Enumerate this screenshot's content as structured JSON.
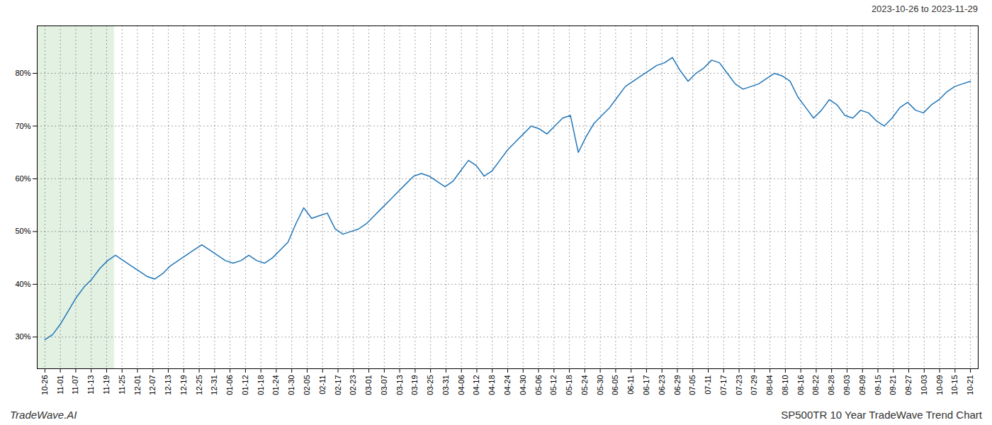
{
  "chart_data": {
    "type": "line",
    "title": "SP500TR 10 Year TradeWave Trend Chart",
    "subtitle": "2023-10-26 to 2023-11-29",
    "annotations": [
      "TradeWave.AI"
    ],
    "color": "#2176b8",
    "grid": true,
    "xlim": [
      -0.5,
      60.5
    ],
    "xticks": [
      {
        "value": 0,
        "label": "10-26"
      },
      {
        "value": 1,
        "label": "11-01"
      },
      {
        "value": 2,
        "label": "11-07"
      },
      {
        "value": 3,
        "label": "11-13"
      },
      {
        "value": 4,
        "label": "11-19"
      },
      {
        "value": 5,
        "label": "11-25"
      },
      {
        "value": 6,
        "label": "12-01"
      },
      {
        "value": 7,
        "label": "12-07"
      },
      {
        "value": 8,
        "label": "12-13"
      },
      {
        "value": 9,
        "label": "12-19"
      },
      {
        "value": 10,
        "label": "12-25"
      },
      {
        "value": 11,
        "label": "12-31"
      },
      {
        "value": 12,
        "label": "01-06"
      },
      {
        "value": 13,
        "label": "01-12"
      },
      {
        "value": 14,
        "label": "01-18"
      },
      {
        "value": 15,
        "label": "01-24"
      },
      {
        "value": 16,
        "label": "01-30"
      },
      {
        "value": 17,
        "label": "02-05"
      },
      {
        "value": 18,
        "label": "02-11"
      },
      {
        "value": 19,
        "label": "02-17"
      },
      {
        "value": 20,
        "label": "02-23"
      },
      {
        "value": 21,
        "label": "03-01"
      },
      {
        "value": 22,
        "label": "03-07"
      },
      {
        "value": 23,
        "label": "03-13"
      },
      {
        "value": 24,
        "label": "03-19"
      },
      {
        "value": 25,
        "label": "03-25"
      },
      {
        "value": 26,
        "label": "03-31"
      },
      {
        "value": 27,
        "label": "04-06"
      },
      {
        "value": 28,
        "label": "04-12"
      },
      {
        "value": 29,
        "label": "04-18"
      },
      {
        "value": 30,
        "label": "04-24"
      },
      {
        "value": 31,
        "label": "04-30"
      },
      {
        "value": 32,
        "label": "05-06"
      },
      {
        "value": 33,
        "label": "05-12"
      },
      {
        "value": 34,
        "label": "05-18"
      },
      {
        "value": 35,
        "label": "05-24"
      },
      {
        "value": 36,
        "label": "05-30"
      },
      {
        "value": 37,
        "label": "06-05"
      },
      {
        "value": 38,
        "label": "06-11"
      },
      {
        "value": 39,
        "label": "06-17"
      },
      {
        "value": 40,
        "label": "06-23"
      },
      {
        "value": 41,
        "label": "06-29"
      },
      {
        "value": 42,
        "label": "07-05"
      },
      {
        "value": 43,
        "label": "07-11"
      },
      {
        "value": 44,
        "label": "07-17"
      },
      {
        "value": 45,
        "label": "07-23"
      },
      {
        "value": 46,
        "label": "07-29"
      },
      {
        "value": 47,
        "label": "08-04"
      },
      {
        "value": 48,
        "label": "08-10"
      },
      {
        "value": 49,
        "label": "08-16"
      },
      {
        "value": 50,
        "label": "08-22"
      },
      {
        "value": 51,
        "label": "08-28"
      },
      {
        "value": 52,
        "label": "09-03"
      },
      {
        "value": 53,
        "label": "09-09"
      },
      {
        "value": 54,
        "label": "09-15"
      },
      {
        "value": 55,
        "label": "09-21"
      },
      {
        "value": 56,
        "label": "09-27"
      },
      {
        "value": 57,
        "label": "10-03"
      },
      {
        "value": 58,
        "label": "10-09"
      },
      {
        "value": 59,
        "label": "10-15"
      },
      {
        "value": 60,
        "label": "10-21"
      }
    ],
    "ylim": [
      24,
      89
    ],
    "yticks": [
      {
        "value": 30,
        "label": "30%"
      },
      {
        "value": 40,
        "label": "40%"
      },
      {
        "value": 50,
        "label": "50%"
      },
      {
        "value": 60,
        "label": "60%"
      },
      {
        "value": 70,
        "label": "70%"
      },
      {
        "value": 80,
        "label": "80%"
      }
    ],
    "shaded": [
      {
        "x": [
          -0.5,
          4.5
        ],
        "color": "#d4ead4"
      }
    ],
    "x": [
      0,
      0.508475,
      1.016949,
      1.525424,
      2.033898,
      2.542373,
      3.050847,
      3.559322,
      4.067797,
      4.576271,
      5.084746,
      5.59322,
      6.101695,
      6.610169,
      7.118644,
      7.627119,
      8.135593,
      8.644068,
      9.152542,
      9.661017,
      10.169492,
      10.677966,
      11.186441,
      11.694915,
      12.20339,
      12.711864,
      13.220339,
      13.728814,
      14.237288,
      14.745763,
      15.254237,
      15.762712,
      16.271186,
      16.779661,
      17.288136,
      17.79661,
      18.305085,
      18.813559,
      19.322034,
      19.830508,
      20.338983,
      20.847458,
      21.355932,
      21.864407,
      22.372881,
      22.881356,
      23.389831,
      23.898305,
      24.40678,
      24.915254,
      25.423729,
      25.932203,
      26.440678,
      26.949153,
      27.457627,
      27.966102,
      28.474576,
      28.983051,
      29.491525,
      30,
      30.508475,
      31.016949,
      31.525424,
      32.033898,
      32.542373,
      33.050847,
      33.559322,
      34.067797,
      34.576271,
      35.084746,
      35.59322,
      36.101695,
      36.610169,
      37.118644,
      37.627119,
      38.135593,
      38.644068,
      39.152542,
      39.661017,
      40.169492,
      40.677966,
      41.186441,
      41.694915,
      42.20339,
      42.711864,
      43.220339,
      43.728814,
      44.237288,
      44.745763,
      45.254237,
      45.762712,
      46.271186,
      46.779661,
      47.288136,
      47.79661,
      48.305085,
      48.813559,
      49.322034,
      49.830508,
      50.338983,
      50.847458,
      51.355932,
      51.864407,
      52.372881,
      52.881356,
      53.389831,
      53.898305,
      54.40678,
      54.915254,
      55.423729,
      55.932203,
      56.440678,
      56.949153,
      57.457627,
      57.966102,
      58.474576,
      58.983051,
      59.491525,
      60
    ],
    "values": [
      29.5,
      30.5,
      32.5,
      35.0,
      37.5,
      39.5,
      41.0,
      43.0,
      44.5,
      45.5,
      44.5,
      43.5,
      42.5,
      41.5,
      41.0,
      42.0,
      43.5,
      44.5,
      45.5,
      46.5,
      47.5,
      46.5,
      45.5,
      44.5,
      44.0,
      44.5,
      45.5,
      44.5,
      44.0,
      45.0,
      46.5,
      48.0,
      51.5,
      54.5,
      52.5,
      53.0,
      53.5,
      50.5,
      49.5,
      50.0,
      50.5,
      51.5,
      53.0,
      54.5,
      56.0,
      57.5,
      59.0,
      60.5,
      61.0,
      60.5,
      59.5,
      58.5,
      59.5,
      61.5,
      63.5,
      62.5,
      60.5,
      61.5,
      63.5,
      65.5,
      67.0,
      68.5,
      70.0,
      69.5,
      68.5,
      70.0,
      71.5,
      72.0,
      65.0,
      68.0,
      70.5,
      72.0,
      73.5,
      75.5,
      77.5,
      78.5,
      79.5,
      80.5,
      81.5,
      82.0,
      83.0,
      80.5,
      78.5,
      80.0,
      81.0,
      82.5,
      82.0,
      80.0,
      78.0,
      77.0,
      77.5,
      78.0,
      79.0,
      80.0,
      79.5,
      78.5,
      75.5,
      73.5,
      71.5,
      73.0,
      75.0,
      74.0,
      72.0,
      71.5,
      73.0,
      72.5,
      71.0,
      70.0,
      71.5,
      73.5,
      74.5,
      73.0,
      72.5,
      74.0,
      75.0,
      76.5,
      77.5,
      78.0,
      78.5
    ]
  }
}
